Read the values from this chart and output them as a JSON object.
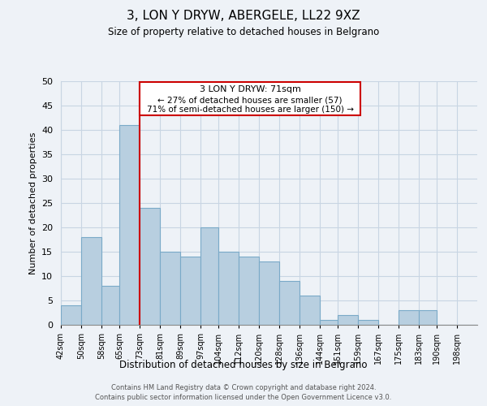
{
  "title": "3, LON Y DRYW, ABERGELE, LL22 9XZ",
  "subtitle": "Size of property relative to detached houses in Belgrano",
  "xlabel": "Distribution of detached houses by size in Belgrano",
  "ylabel": "Number of detached properties",
  "bin_labels": [
    "42sqm",
    "50sqm",
    "58sqm",
    "65sqm",
    "73sqm",
    "81sqm",
    "89sqm",
    "97sqm",
    "104sqm",
    "112sqm",
    "120sqm",
    "128sqm",
    "136sqm",
    "144sqm",
    "151sqm",
    "159sqm",
    "167sqm",
    "175sqm",
    "183sqm",
    "190sqm",
    "198sqm"
  ],
  "bar_values": [
    4,
    18,
    8,
    41,
    24,
    15,
    14,
    20,
    15,
    14,
    13,
    9,
    6,
    1,
    2,
    1,
    0,
    3,
    3,
    0,
    0
  ],
  "bar_color": "#b8cfe0",
  "bar_edge_color": "#7aaac8",
  "highlight_line_color": "#cc0000",
  "ylim": [
    0,
    50
  ],
  "yticks": [
    0,
    5,
    10,
    15,
    20,
    25,
    30,
    35,
    40,
    45,
    50
  ],
  "annotation_title": "3 LON Y DRYW: 71sqm",
  "annotation_line1": "← 27% of detached houses are smaller (57)",
  "annotation_line2": "71% of semi-detached houses are larger (150) →",
  "annotation_box_color": "#ffffff",
  "annotation_box_edge": "#cc0000",
  "footer_line1": "Contains HM Land Registry data © Crown copyright and database right 2024.",
  "footer_line2": "Contains public sector information licensed under the Open Government Licence v3.0.",
  "background_color": "#eef2f7",
  "plot_bg_color": "#eef2f7",
  "grid_color": "#c8d5e3"
}
